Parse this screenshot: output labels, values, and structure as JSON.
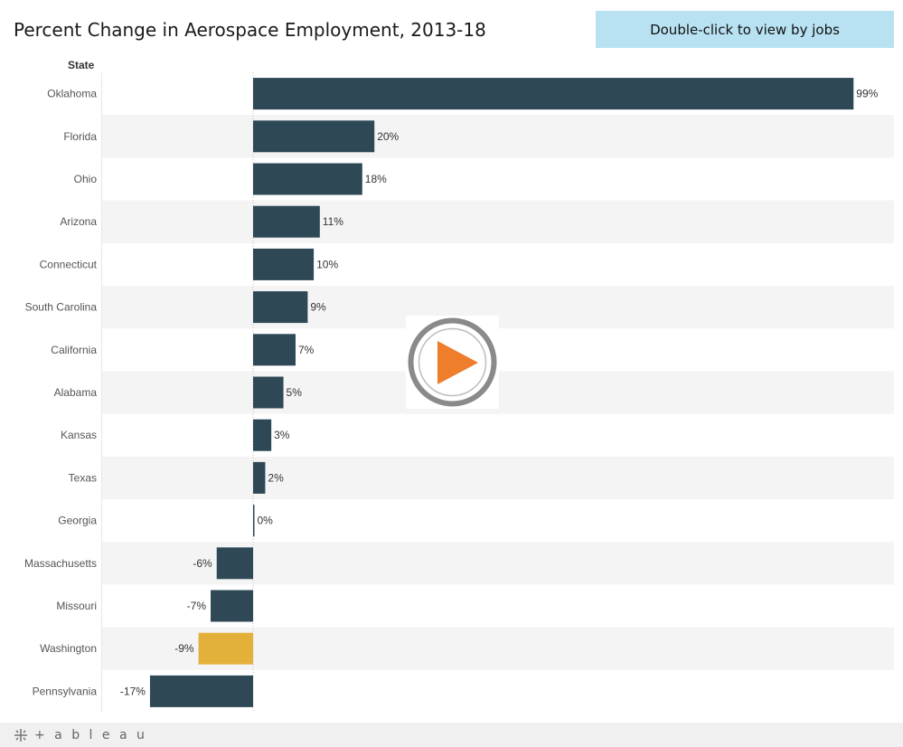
{
  "header": {
    "title": "Percent Change in Aerospace Employment, 2013-18",
    "view_button_label": "Double-click to view by jobs",
    "column_label": "State"
  },
  "colors": {
    "bar": "#2e4856",
    "highlight": "#e3b13a",
    "band": "#f4f4f4",
    "play_ring": "#8a8a8a",
    "play_triangle": "#ee7d2c"
  },
  "chart_data": {
    "type": "bar",
    "orientation": "horizontal",
    "title": "Percent Change in Aerospace Employment, 2013-18",
    "ylabel": "State",
    "xlim": [
      -25,
      100
    ],
    "categories": [
      "Oklahoma",
      "Florida",
      "Ohio",
      "Arizona",
      "Connecticut",
      "South Carolina",
      "California",
      "Alabama",
      "Kansas",
      "Texas",
      "Georgia",
      "Massachusetts",
      "Missouri",
      "Washington",
      "Pennsylvania"
    ],
    "values": [
      99,
      20,
      18,
      11,
      10,
      9,
      7,
      5,
      3,
      2,
      0,
      -6,
      -7,
      -9,
      -17
    ],
    "labels": [
      "99%",
      "20%",
      "18%",
      "11%",
      "10%",
      "9%",
      "7%",
      "5%",
      "3%",
      "2%",
      "0%",
      "-6%",
      "-7%",
      "-9%",
      "-17%"
    ],
    "highlighted": [
      "Washington"
    ]
  },
  "footer": {
    "brand_label": "+ a b l e a u",
    "logo_icon": "tableau-logo-icon"
  },
  "overlay": {
    "play_icon": "play-icon"
  }
}
